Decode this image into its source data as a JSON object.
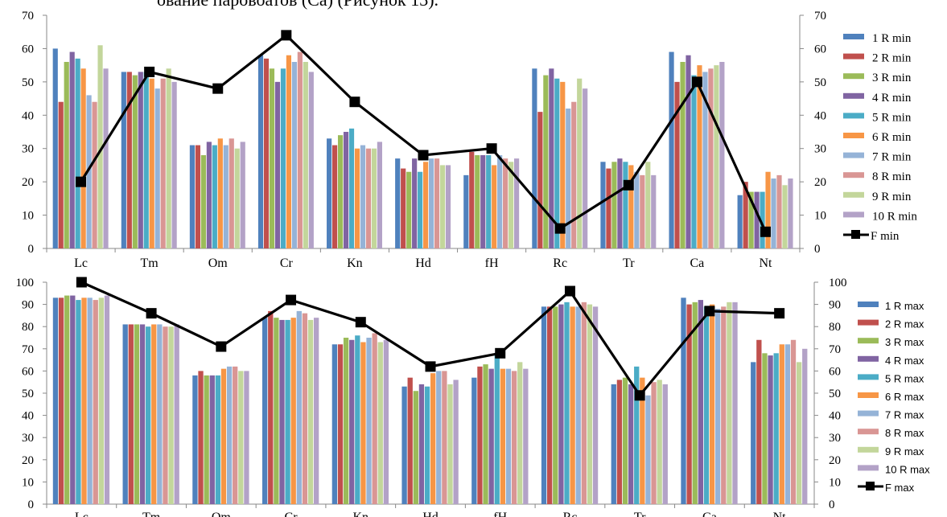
{
  "header_text": "ование паровоатов (Са) (Рисунок 13).",
  "colors": [
    "#4f81bd",
    "#c0504d",
    "#9bbb59",
    "#8064a2",
    "#4bacc6",
    "#f79646",
    "#95b3d7",
    "#d99694",
    "#c3d69b",
    "#b3a2c7"
  ],
  "line_color": "#000000",
  "chart_data": [
    {
      "type": "bar",
      "categories": [
        "Lc",
        "Tm",
        "Om",
        "Cr",
        "Kn",
        "Hd",
        "fH",
        "Rc",
        "Tr",
        "Ca",
        "Nt"
      ],
      "ylim": [
        0,
        70
      ],
      "yticks": [
        "0",
        "10",
        "20",
        "30",
        "40",
        "50",
        "60",
        "70"
      ],
      "legend_position": "right",
      "grid": false,
      "series": [
        {
          "name": "1 R min",
          "values": [
            60,
            53,
            31,
            58,
            33,
            27,
            22,
            54,
            26,
            59,
            16
          ]
        },
        {
          "name": "2 R min",
          "values": [
            44,
            53,
            31,
            57,
            31,
            24,
            29,
            41,
            24,
            50,
            20
          ]
        },
        {
          "name": "3 R min",
          "values": [
            56,
            52,
            28,
            54,
            34,
            23,
            28,
            52,
            26,
            56,
            17
          ]
        },
        {
          "name": "4 R min",
          "values": [
            59,
            53,
            32,
            50,
            35,
            27,
            28,
            54,
            27,
            58,
            17
          ]
        },
        {
          "name": "5 R min",
          "values": [
            57,
            53,
            31,
            54,
            36,
            23,
            28,
            51,
            26,
            52,
            17
          ]
        },
        {
          "name": "6 R min",
          "values": [
            54,
            51,
            33,
            58,
            30,
            26,
            25,
            50,
            25,
            55,
            23
          ]
        },
        {
          "name": "7 R min",
          "values": [
            46,
            48,
            31,
            56,
            31,
            27,
            28,
            42,
            23,
            53,
            21
          ]
        },
        {
          "name": "8 R min",
          "values": [
            44,
            51,
            33,
            59,
            30,
            27,
            27,
            44,
            22,
            54,
            22
          ]
        },
        {
          "name": "9 R min",
          "values": [
            61,
            54,
            30,
            56,
            30,
            25,
            26,
            51,
            26,
            55,
            19
          ]
        },
        {
          "name": "10 R min",
          "values": [
            54,
            50,
            32,
            53,
            32,
            25,
            27,
            48,
            22,
            56,
            21
          ]
        }
      ],
      "line_series": {
        "name": "F min",
        "values": [
          20,
          53,
          48,
          64,
          44,
          28,
          30,
          6,
          19,
          50,
          5
        ]
      }
    },
    {
      "type": "bar",
      "categories": [
        "Lc",
        "Tm",
        "Om",
        "Cr",
        "Kn",
        "Hd",
        "fH",
        "Rc",
        "Tr",
        "Ca",
        "Nt"
      ],
      "ylim": [
        0,
        100
      ],
      "yticks": [
        "0",
        "10",
        "20",
        "30",
        "40",
        "50",
        "60",
        "70",
        "80",
        "90",
        "100"
      ],
      "legend_position": "right",
      "grid": false,
      "series": [
        {
          "name": "1 R max",
          "values": [
            93,
            81,
            58,
            84,
            72,
            53,
            57,
            89,
            54,
            93,
            64
          ]
        },
        {
          "name": "2 R max",
          "values": [
            93,
            81,
            60,
            87,
            72,
            57,
            62,
            89,
            56,
            90,
            74
          ]
        },
        {
          "name": "3 R max",
          "values": [
            94,
            81,
            58,
            84,
            75,
            51,
            63,
            89,
            57,
            91,
            68
          ]
        },
        {
          "name": "4 R max",
          "values": [
            94,
            81,
            58,
            83,
            74,
            54,
            61,
            90,
            54,
            92,
            67
          ]
        },
        {
          "name": "5 R max",
          "values": [
            92,
            80,
            58,
            83,
            76,
            53,
            68,
            91,
            62,
            89,
            68
          ]
        },
        {
          "name": "6 R max",
          "values": [
            93,
            81,
            61,
            84,
            73,
            59,
            61,
            89,
            57,
            90,
            72
          ]
        },
        {
          "name": "7 R max",
          "values": [
            93,
            81,
            62,
            87,
            75,
            60,
            61,
            89,
            49,
            88,
            72
          ]
        },
        {
          "name": "8 R max",
          "values": [
            92,
            80,
            62,
            86,
            77,
            60,
            60,
            91,
            55,
            89,
            74
          ]
        },
        {
          "name": "9 R max",
          "values": [
            93,
            80,
            60,
            83,
            73,
            54,
            64,
            90,
            56,
            91,
            64
          ]
        },
        {
          "name": "10 R max",
          "values": [
            94,
            81,
            60,
            84,
            74,
            56,
            61,
            89,
            54,
            91,
            70
          ]
        }
      ],
      "line_series": {
        "name": "F max",
        "values": [
          100,
          86,
          71,
          92,
          82,
          62,
          68,
          96,
          49,
          87,
          86
        ]
      }
    }
  ]
}
